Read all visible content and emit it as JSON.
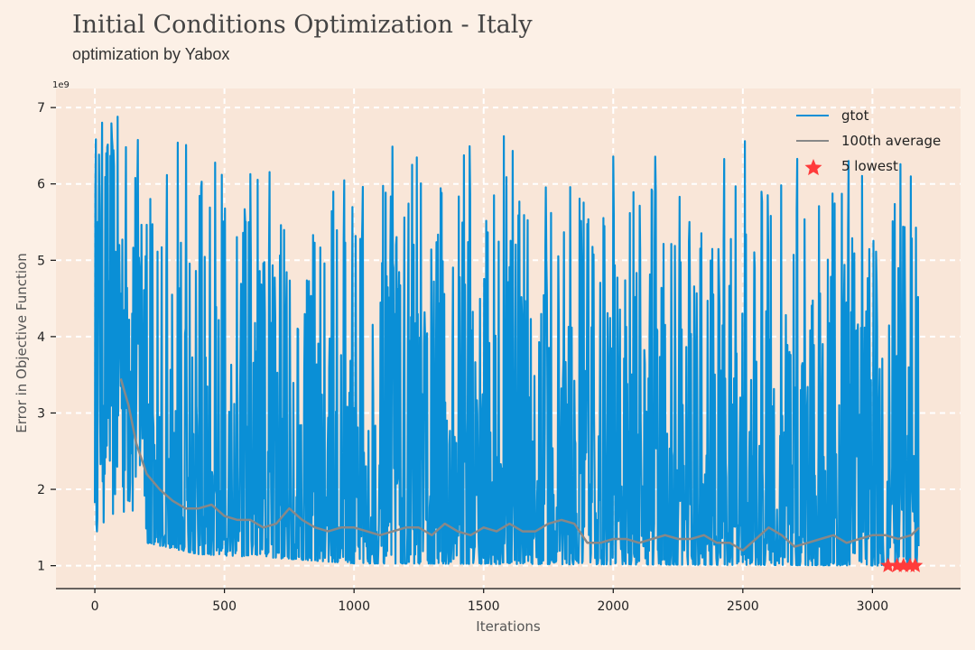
{
  "header": {
    "title": "Initial Conditions Optimization - Italy",
    "subtitle": "optimization by Yabox"
  },
  "chart_data": {
    "type": "line",
    "xlabel": "Iterations",
    "ylabel": "Error in Objective Function",
    "y_exponent_label": "1e9",
    "xlim": [
      -150,
      3340
    ],
    "ylim": [
      0.7,
      7.25
    ],
    "x_ticks": [
      0,
      500,
      1000,
      1500,
      2000,
      2500,
      3000
    ],
    "y_ticks": [
      1,
      2,
      3,
      4,
      5,
      6,
      7
    ],
    "grid": true,
    "legend_position": "top-right",
    "colors": {
      "gtot": "#0a8fd6",
      "average": "#888888",
      "lowest": "#ff3b3b",
      "plot_bg": "#f9e6d8",
      "grid": "#ffffff"
    },
    "series": [
      {
        "name": "gtot",
        "n_points": 3180,
        "description_values": "error per iteration, oscillating between ~1.0 and ~6.9",
        "envelope": [
          [
            0,
            6.9
          ],
          [
            100,
            6.9
          ],
          [
            150,
            6.7
          ],
          [
            300,
            6.6
          ],
          [
            600,
            6.7
          ],
          [
            1000,
            6.5
          ],
          [
            1500,
            6.7
          ],
          [
            2000,
            6.5
          ],
          [
            2500,
            6.6
          ],
          [
            2800,
            6.6
          ],
          [
            3170,
            6.3
          ]
        ],
        "floor": [
          [
            0,
            1.4
          ],
          [
            100,
            1.5
          ],
          [
            200,
            1.3
          ],
          [
            400,
            1.15
          ],
          [
            700,
            1.1
          ],
          [
            1000,
            1.03
          ],
          [
            3170,
            1.0
          ]
        ]
      },
      {
        "name": "100th average",
        "x": [
          100,
          130,
          160,
          200,
          250,
          300,
          350,
          400,
          450,
          500,
          550,
          600,
          650,
          700,
          750,
          800,
          850,
          900,
          950,
          1000,
          1050,
          1100,
          1150,
          1200,
          1250,
          1300,
          1350,
          1400,
          1450,
          1500,
          1550,
          1600,
          1650,
          1700,
          1750,
          1800,
          1850,
          1900,
          1950,
          2000,
          2050,
          2100,
          2150,
          2200,
          2250,
          2300,
          2350,
          2400,
          2450,
          2500,
          2550,
          2600,
          2650,
          2700,
          2750,
          2800,
          2850,
          2900,
          2950,
          3000,
          3050,
          3100,
          3150,
          3180
        ],
        "values": [
          3.45,
          3.1,
          2.6,
          2.2,
          2.0,
          1.85,
          1.75,
          1.75,
          1.8,
          1.65,
          1.6,
          1.6,
          1.5,
          1.55,
          1.75,
          1.6,
          1.5,
          1.45,
          1.5,
          1.5,
          1.45,
          1.4,
          1.45,
          1.5,
          1.5,
          1.4,
          1.55,
          1.45,
          1.4,
          1.5,
          1.45,
          1.55,
          1.45,
          1.45,
          1.55,
          1.6,
          1.55,
          1.3,
          1.3,
          1.35,
          1.35,
          1.3,
          1.35,
          1.4,
          1.35,
          1.35,
          1.4,
          1.3,
          1.3,
          1.2,
          1.35,
          1.5,
          1.4,
          1.25,
          1.3,
          1.35,
          1.4,
          1.3,
          1.35,
          1.4,
          1.4,
          1.35,
          1.4,
          1.5
        ]
      },
      {
        "name": "5 lowest",
        "x": [
          3060,
          3095,
          3120,
          3145,
          3165
        ],
        "values": [
          1.0,
          1.0,
          1.0,
          1.0,
          1.0
        ]
      }
    ]
  }
}
